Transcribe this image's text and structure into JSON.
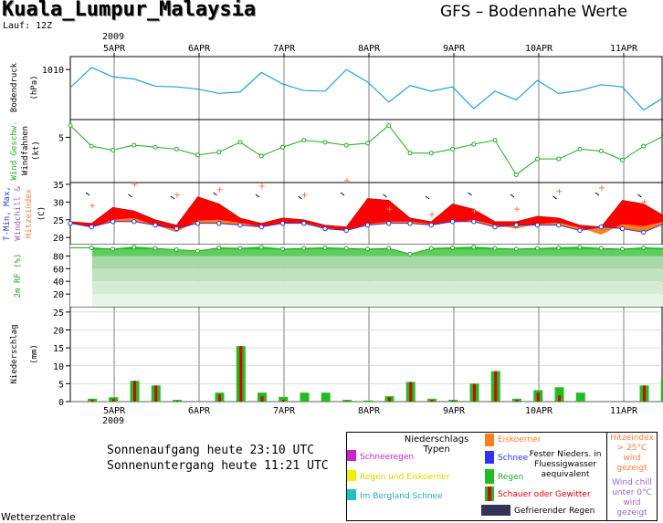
{
  "header": {
    "location": "Kuala_Lumpur_Malaysia",
    "model_title": "GFS – Bodennahe Werte",
    "run": "Lauf: 12Z",
    "year": "2009",
    "footer": "Wetterzentrale"
  },
  "sun": {
    "sunrise": "Sonnenaufgang heute 23:10 UTC",
    "sunset": "Sonnenuntergang heute 11:21 UTC"
  },
  "legend": {
    "title": "Niederschlags Typen",
    "schneeregen": "Schneeregen",
    "regen_eis": "Regen und Eiskoerner",
    "berg_schnee": "Im Bergland Schnee",
    "eiskoerner": "Eiskoerner",
    "schnee": "Schnee",
    "fester": "Fester Nieders. in Fluessigwasser aequivalent",
    "regen": "Regen",
    "schauer": "Schauer oder Gewitter",
    "gefrierend": "Gefrierender Regen",
    "hitze": "Hitzeindex > 25°C wird gezeigt",
    "windchill": "Wind chill unter 0°C wird gezeigt",
    "colors": {
      "schneeregen": "#cc22cc",
      "regen_eis": "#f0f000",
      "berg_schnee": "#20c0c0",
      "eiskoerner": "#ff7f20",
      "schnee": "#3030ff",
      "regen": "#22bb22",
      "schauer": "#dd0000",
      "gefrierend": "#333355",
      "hitze": "#ff7f40",
      "windchill": "#9966cc"
    }
  },
  "chart_data": {
    "type": "line",
    "dates": [
      "5APR",
      "6APR",
      "7APR",
      "8APR",
      "9APR",
      "10APR",
      "11APR"
    ],
    "steps_per_day": 4,
    "panels": [
      {
        "id": "pressure",
        "ylabel": "Bodendruck (hPa)",
        "ticks": [
          1010
        ],
        "ylim": [
          1003.2,
          1011.8
        ],
        "color": "#1ea0e0",
        "values": [
          1007.5,
          1010.3,
          1009.0,
          1008.7,
          1007.7,
          1007.6,
          1007.3,
          1006.7,
          1006.9,
          1009.6,
          1008.0,
          1007.1,
          1007.0,
          1010.0,
          1008.3,
          1005.5,
          1007.8,
          1007.0,
          1007.6,
          1004.6,
          1007.0,
          1005.8,
          1008.5,
          1006.7,
          1007.1,
          1007.9,
          1007.6,
          1004.4,
          1006.2
        ]
      },
      {
        "id": "wind",
        "ylabel": "Wind Geschw. Windfahnen (kt)",
        "ticks": [
          5
        ],
        "ylim": [
          0.5,
          6.8
        ],
        "color": "#22aa22",
        "values": [
          6.2,
          4.1,
          3.7,
          4.2,
          4.0,
          3.8,
          3.2,
          3.5,
          4.5,
          3.1,
          4.0,
          4.7,
          4.5,
          4.2,
          4.4,
          6.2,
          3.4,
          3.4,
          3.8,
          4.3,
          4.7,
          1.2,
          2.8,
          2.8,
          3.8,
          3.6,
          2.7,
          4.1,
          5.2
        ]
      },
      {
        "id": "temp",
        "ylabel": "T-Min, Max, Windchill & Hitzeindex (C)",
        "ticks": [
          20,
          25,
          30,
          35
        ],
        "ylim": [
          18,
          35.5
        ],
        "tmin": [
          24.0,
          23.0,
          24.5,
          24.5,
          23.5,
          22.5,
          24.0,
          24.0,
          23.5,
          23.0,
          24.0,
          24.0,
          22.5,
          22.0,
          23.5,
          24.0,
          24.0,
          23.5,
          24.5,
          24.5,
          23.0,
          23.5,
          23.5,
          23.5,
          22.0,
          23.0,
          22.5,
          21.5,
          24.0
        ],
        "tmax": [
          24.5,
          24.0,
          28.5,
          27.5,
          25.0,
          23.5,
          31.5,
          29.5,
          25.5,
          24.0,
          25.5,
          25.0,
          23.5,
          23.0,
          31.0,
          30.5,
          25.5,
          24.5,
          29.5,
          28.0,
          24.5,
          24.5,
          26.0,
          25.5,
          23.5,
          23.0,
          30.5,
          29.5,
          26.0
        ],
        "tmean": [
          24.0,
          22.8,
          25.0,
          25.5,
          23.5,
          21.5,
          24.8,
          25.0,
          24.2,
          23.0,
          24.0,
          24.2,
          22.8,
          22.0,
          23.8,
          24.5,
          24.5,
          23.8,
          24.2,
          25.0,
          23.5,
          22.5,
          23.8,
          24.2,
          22.8,
          20.8,
          23.8,
          23.2,
          24.5
        ],
        "hitze_marks": [
          29.0,
          35.0,
          32.0,
          33.5,
          34.5,
          32.0,
          36.0,
          28.0,
          26.5,
          27.5,
          28.0,
          33.0,
          34.0,
          30.0
        ],
        "colors": {
          "max_fill": "#ff0000",
          "min_fill": "#ff7f20",
          "line": "#3333cc",
          "hitze": "#ff7f40"
        }
      },
      {
        "id": "humidity",
        "ylabel": "2m RF (%)",
        "ticks": [
          20,
          40,
          60,
          80
        ],
        "ylim": [
          0,
          98
        ],
        "color": "#22cc22",
        "values": [
          93,
          93,
          91,
          94,
          92,
          90,
          88,
          93,
          92,
          94,
          91,
          92,
          93,
          92,
          91,
          92,
          83,
          92,
          93,
          94,
          92,
          91,
          92,
          93,
          94,
          92,
          91,
          93,
          92
        ]
      },
      {
        "id": "precip",
        "ylabel": "Niederschlag (mm)",
        "ticks": [
          0,
          5,
          10,
          15,
          20,
          25
        ],
        "ylim": [
          0,
          26.5
        ],
        "color": "#22bb22",
        "total": [
          0.8,
          1.2,
          5.8,
          4.5,
          0.5,
          0,
          2.5,
          15.5,
          2.5,
          1.3,
          2.5,
          2.5,
          0.5,
          0.3,
          1.5,
          5.5,
          0.8,
          0.5,
          5.0,
          8.5,
          0.8,
          3.2,
          4.0,
          2.5,
          0,
          0,
          4.5,
          6.2
        ],
        "convective": [
          0.5,
          0.8,
          5.8,
          4.5,
          0.2,
          0,
          2.0,
          15.5,
          1.5,
          0.5,
          0,
          0,
          0.2,
          0,
          1.2,
          5.5,
          0.5,
          0.3,
          5.0,
          8.5,
          0.5,
          2.5,
          1.8,
          0,
          0,
          0,
          4.5,
          6.2
        ]
      }
    ]
  }
}
